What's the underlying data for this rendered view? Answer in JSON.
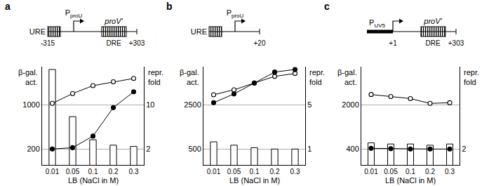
{
  "chart_data": [
    {
      "type": "bar",
      "title": "a",
      "x_label": "LB (NaCl in M)",
      "y_label": "β-gal. act.",
      "y2_label": "repr. fold",
      "categories": [
        "0.01",
        "0.05",
        "0.1",
        "0.2",
        "0.3"
      ],
      "log": "y",
      "grid": true,
      "ylim": [
        112,
        4000
      ],
      "yticks": [
        200,
        1000
      ],
      "y2lim": [
        1.12,
        40
      ],
      "y2ticks": [
        2,
        10
      ],
      "series": [
        {
          "type": "bar",
          "axis": "y2",
          "color": "#ffffff",
          "values": [
            36,
            6.5,
            2.8,
            2.3,
            2.2
          ]
        },
        {
          "type": "line",
          "marker": "open circle",
          "color": "#000000",
          "values": [
            1050,
            1500,
            2000,
            2300,
            2600
          ]
        },
        {
          "type": "line",
          "marker": "filled circle",
          "color": "#000000",
          "values": [
            200,
            210,
            320,
            900,
            1600
          ]
        }
      ]
    },
    {
      "type": "bar",
      "title": "b",
      "x_label": "LB (NaCl in M)",
      "y_label": "β-gal. act.",
      "y2_label": "repr. fold",
      "categories": [
        "0.01",
        "0.05",
        "0.1",
        "0.2",
        "0.3"
      ],
      "log": "y",
      "grid": true,
      "ylim": [
        280,
        10000
      ],
      "yticks": [
        500,
        2500
      ],
      "y2lim": [
        0.56,
        20
      ],
      "y2ticks": [
        1,
        5
      ],
      "series": [
        {
          "type": "bar",
          "axis": "y2",
          "color": "#ffffff",
          "values": [
            1.3,
            1.15,
            1.05,
            1.0,
            1.0
          ]
        },
        {
          "type": "line",
          "marker": "open circle",
          "color": "#000000",
          "values": [
            3600,
            4300,
            5500,
            7000,
            7800
          ]
        },
        {
          "type": "line",
          "marker": "filled circle",
          "color": "#000000",
          "values": [
            2700,
            3700,
            5500,
            8200,
            9000
          ]
        }
      ]
    },
    {
      "type": "bar",
      "title": "c",
      "x_label": "LB (NaCl in M)",
      "y_label": "β-gal. act.",
      "y2_label": "repr. fold",
      "categories": [
        "0.01",
        "0.05",
        "0.1",
        "0.2",
        "0.3"
      ],
      "log": "y",
      "grid": true,
      "ylim": [
        224,
        8000
      ],
      "yticks": [
        400,
        2000
      ],
      "y2lim": [
        1.12,
        40
      ],
      "y2ticks": [
        2
      ],
      "series": [
        {
          "type": "bar",
          "axis": "y2",
          "color": "#ffffff",
          "values": [
            2.5,
            2.4,
            2.4,
            2.3,
            2.4
          ]
        },
        {
          "type": "line",
          "marker": "open circle",
          "color": "#000000",
          "values": [
            2900,
            2700,
            2500,
            2100,
            2150
          ]
        },
        {
          "type": "line",
          "marker": "filled circle",
          "color": "#000000",
          "values": [
            410,
            405,
            400,
            400,
            400
          ]
        }
      ]
    }
  ],
  "diagrams": [
    {
      "upstream": "URE",
      "promoter": [
        "P",
        "proU"
      ],
      "gene": "proV'",
      "downstream": "DRE",
      "left_end": "-315",
      "right_end": "+303"
    },
    {
      "upstream": "URE",
      "promoter": [
        "P",
        "proU"
      ],
      "right_end": "+20"
    },
    {
      "promoter": [
        "P",
        "UV5"
      ],
      "promoter_end": "+1",
      "gene": "proV'",
      "downstream": "DRE",
      "right_end": "+303"
    }
  ]
}
